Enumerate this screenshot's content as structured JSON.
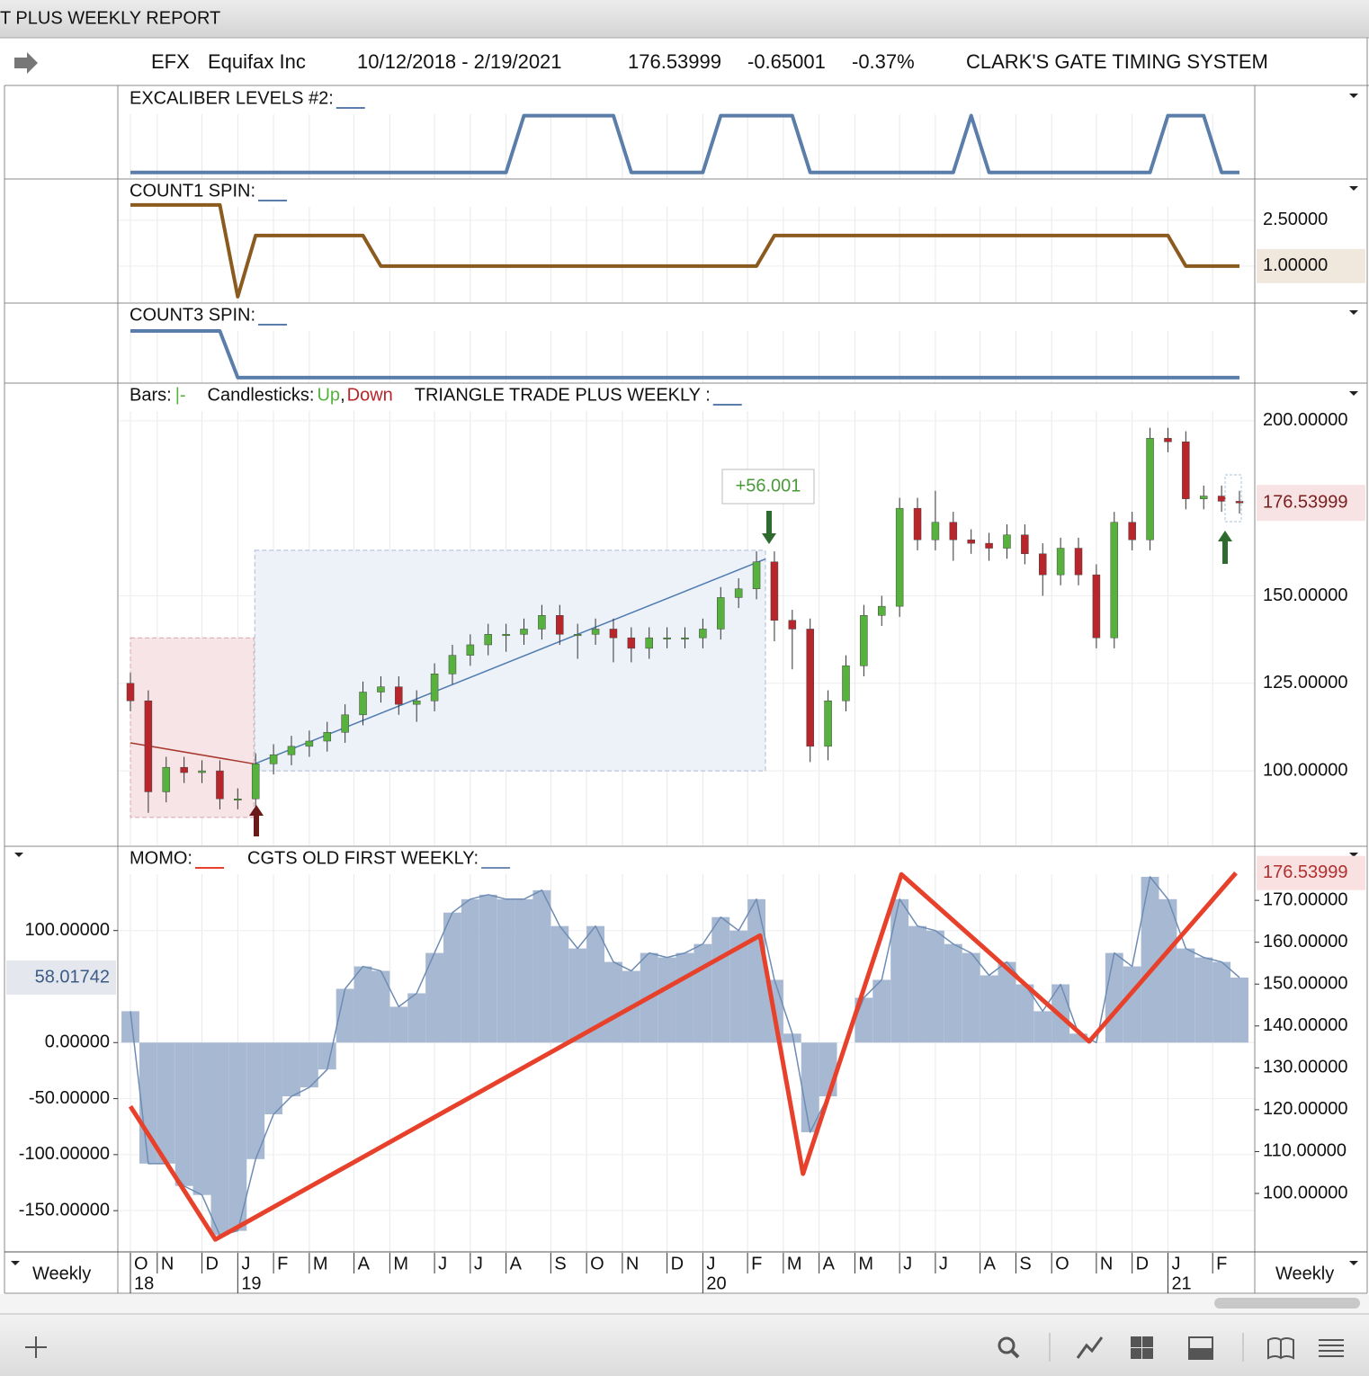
{
  "window": {
    "title": "T PLUS WEEKLY REPORT"
  },
  "info": {
    "symbol": "EFX",
    "name": "Equifax Inc",
    "range": "10/12/2018 - 2/19/2021",
    "last": "176.53999",
    "change": "-0.65001",
    "change_pct": "-0.37%",
    "system": "CLARK'S GATE TIMING SYSTEM"
  },
  "chart_data": [
    {
      "type": "line",
      "title": "EXCALIBER LEVELS #2:",
      "color": "#5a7ea9",
      "swatch_color": "#5a7ea9",
      "ylim": [
        -0.1,
        1.5
      ],
      "x": [
        0,
        2,
        4,
        6,
        8,
        10,
        12,
        14,
        16,
        18,
        20,
        22,
        24,
        26,
        28,
        30,
        32,
        34,
        36,
        38,
        40,
        42,
        44,
        46,
        48,
        50,
        52,
        54,
        56,
        58,
        60,
        62,
        64,
        66,
        68,
        70,
        72,
        74,
        76,
        78,
        80,
        82,
        84,
        86,
        88,
        90,
        92,
        94,
        96,
        98,
        100,
        102,
        104,
        106,
        108,
        110,
        112,
        114,
        116,
        118,
        120,
        122,
        124
      ],
      "values": [
        0,
        0,
        0,
        0,
        0,
        0,
        0,
        0,
        0,
        0,
        0,
        0,
        0,
        0,
        0,
        0,
        0,
        0,
        0,
        0,
        0,
        0,
        1,
        1,
        1,
        1,
        1,
        1,
        0,
        0,
        0,
        0,
        0,
        1,
        1,
        1,
        1,
        1,
        0,
        0,
        0,
        0,
        0,
        0,
        0,
        0,
        0,
        1,
        0,
        0,
        0,
        0,
        0,
        0,
        0,
        0,
        0,
        0,
        1,
        1,
        1,
        0,
        0
      ]
    },
    {
      "type": "line",
      "title": "COUNT1 SPIN:",
      "color": "#8b5a1f",
      "swatch_color": "#5a7ea9",
      "ylim": [
        -0.18,
        3.82
      ],
      "yticks": [
        {
          "value": 2.5,
          "label": "2.50000"
        },
        {
          "value": 1,
          "label": "1.00000"
        }
      ],
      "x": [
        0,
        2,
        4,
        6,
        8,
        10,
        12,
        14,
        16,
        18,
        20,
        22,
        24,
        26,
        28,
        30,
        32,
        34,
        36,
        38,
        40,
        42,
        44,
        46,
        48,
        50,
        52,
        54,
        56,
        58,
        60,
        62,
        64,
        66,
        68,
        70,
        72,
        74,
        76,
        78,
        80,
        82,
        84,
        86,
        88,
        90,
        92,
        94,
        96,
        98,
        100,
        102,
        104,
        106,
        108,
        110,
        112,
        114,
        116,
        118,
        120,
        122,
        124
      ],
      "values": [
        3,
        3,
        3,
        3,
        3,
        3,
        0,
        2,
        2,
        2,
        2,
        2,
        2,
        2,
        1,
        1,
        1,
        1,
        1,
        1,
        1,
        1,
        1,
        1,
        1,
        1,
        1,
        1,
        1,
        1,
        1,
        1,
        1,
        1,
        1,
        1,
        2,
        2,
        2,
        2,
        2,
        2,
        2,
        2,
        2,
        2,
        2,
        2,
        2,
        2,
        2,
        2,
        2,
        2,
        2,
        2,
        2,
        2,
        2,
        1,
        1,
        1,
        1
      ]
    },
    {
      "type": "line",
      "title": "COUNT3 SPIN:",
      "color": "#5a7ea9",
      "swatch_color": "#5a7ea9",
      "ylim": [
        -0.1,
        1.58
      ],
      "x": [
        0,
        2,
        4,
        6,
        8,
        10,
        12,
        14,
        16,
        18,
        20,
        22,
        24,
        26,
        28,
        30,
        32,
        34,
        36,
        38,
        40,
        42,
        44,
        46,
        48,
        50,
        52,
        54,
        56,
        58,
        60,
        62,
        64,
        66,
        68,
        70,
        72,
        74,
        76,
        78,
        80,
        82,
        84,
        86,
        88,
        90,
        92,
        94,
        96,
        98,
        100,
        102,
        104,
        106,
        108,
        110,
        112,
        114,
        116,
        118,
        120,
        122,
        124
      ],
      "values": [
        1,
        1,
        1,
        1,
        1,
        1,
        0,
        0,
        0,
        0,
        0,
        0,
        0,
        0,
        0,
        0,
        0,
        0,
        0,
        0,
        0,
        0,
        0,
        0,
        0,
        0,
        0,
        0,
        0,
        0,
        0,
        0,
        0,
        0,
        0,
        0,
        0,
        0,
        0,
        0,
        0,
        0,
        0,
        0,
        0,
        0,
        0,
        0,
        0,
        0,
        0,
        0,
        0,
        0,
        0,
        0,
        0,
        0,
        0,
        0,
        0,
        0,
        0
      ]
    },
    {
      "type": "candlestick",
      "title": "TRIANGLE TRADE PLUS WEEKLY :",
      "swatch_color": "#5a7ea9",
      "legend": {
        "bars": "Bars:",
        "bar_symbol": "|-",
        "candles": "Candlesticks:",
        "up": "Up",
        "sep": ",",
        "down": "Down"
      },
      "up_color": "#56b23c",
      "down_color": "#b8252a",
      "annotation": "+56.001",
      "ylim": [
        78.7,
        210.5
      ],
      "yticks": [
        {
          "value": 100,
          "label": "100.00000"
        },
        {
          "value": 125,
          "label": "125.00000"
        },
        {
          "value": 150,
          "label": "150.00000"
        },
        {
          "value": 200,
          "label": "200.00000"
        }
      ],
      "x": [
        0,
        2,
        4,
        6,
        8,
        10,
        12,
        14,
        16,
        18,
        20,
        22,
        24,
        26,
        28,
        30,
        32,
        34,
        36,
        38,
        40,
        42,
        44,
        46,
        48,
        50,
        52,
        54,
        56,
        58,
        60,
        62,
        64,
        66,
        68,
        70,
        72,
        74,
        76,
        78,
        80,
        82,
        84,
        86,
        88,
        90,
        92,
        94,
        96,
        98,
        100,
        102,
        104,
        106,
        108,
        110,
        112,
        114,
        116,
        118,
        120,
        122,
        124
      ],
      "open": [
        125,
        120,
        94,
        101,
        99.5,
        100,
        92,
        92,
        102,
        104.6,
        107,
        108.5,
        111,
        116,
        122.5,
        124,
        119,
        120,
        127.7,
        133,
        136,
        139,
        139,
        140.5,
        144.4,
        139,
        139,
        140.5,
        138,
        135,
        138,
        138,
        138,
        140.5,
        149.5,
        152,
        159.7,
        143,
        140.5,
        107,
        120,
        130,
        144.4,
        147,
        175,
        166,
        171,
        166,
        165,
        163.6,
        167.4,
        162,
        156,
        163.6,
        156,
        138,
        171,
        166,
        195,
        194,
        177.7,
        178.5,
        177
      ],
      "high": [
        128,
        123,
        104,
        104,
        103,
        103,
        95,
        105,
        107.6,
        110,
        111.5,
        114,
        119,
        125.5,
        127,
        127,
        123,
        130.7,
        136,
        139,
        142,
        142,
        143.5,
        147.4,
        147.4,
        142,
        143.5,
        143.5,
        141,
        141,
        141,
        141,
        143.5,
        152.5,
        155,
        162.7,
        162.7,
        146,
        143.5,
        123,
        133,
        147.4,
        150,
        178,
        178,
        180,
        174,
        169,
        168,
        170.4,
        170.4,
        165,
        166.6,
        166.6,
        159,
        174,
        174,
        198,
        198,
        197,
        181.5,
        181.5,
        180
      ],
      "low": [
        117,
        88,
        91,
        96.5,
        96.5,
        89,
        89,
        89,
        99,
        101.6,
        104,
        105.5,
        108,
        113,
        119.5,
        116,
        114,
        117,
        124.7,
        130,
        133,
        134,
        136,
        137.5,
        136,
        132,
        136,
        131,
        131,
        132,
        135,
        135,
        135,
        137.5,
        146.5,
        149,
        137,
        129,
        102.5,
        103,
        117,
        127,
        141.4,
        144,
        163,
        163,
        160,
        162,
        160,
        160.6,
        159,
        150,
        153,
        153,
        135,
        135,
        163,
        163,
        191,
        174.7,
        174.7,
        174,
        173.5
      ],
      "close": [
        120,
        94,
        101,
        99.5,
        100,
        92,
        92,
        102,
        104.6,
        107,
        108.5,
        111,
        116,
        122.5,
        124,
        119,
        120,
        127.7,
        133,
        136,
        139,
        139,
        140.5,
        144.4,
        139,
        139,
        140.5,
        138,
        135,
        138,
        138,
        138,
        140.5,
        149.5,
        152,
        159.7,
        143,
        140.5,
        107,
        120,
        130,
        144.4,
        147,
        175,
        166,
        171,
        166,
        165,
        163.6,
        167.4,
        162,
        156,
        163.6,
        156,
        138,
        171,
        166,
        195,
        194,
        177.7,
        178.5,
        177,
        176.53999
      ],
      "zones": [
        {
          "x": [
            0,
            13.8
          ],
          "y": [
            86.7,
            138
          ],
          "color": "#f6e4e7",
          "edge": "#d9a3ad"
        },
        {
          "x": [
            13.9,
            71
          ],
          "y": [
            100,
            163
          ],
          "color": "#edf1f8",
          "edge": "#aebbd6"
        }
      ],
      "trend_lines": [
        {
          "x": [
            0,
            13.8
          ],
          "y": [
            108,
            102
          ],
          "color": "#a8372c"
        },
        {
          "x": [
            13.9,
            71
          ],
          "y": [
            102,
            160.5
          ],
          "color": "#4f7bb0"
        }
      ]
    },
    {
      "type": "bar_line",
      "xlim": [
        0,
        124
      ],
      "xticks": [
        {
          "value": 0,
          "label": "O"
        },
        {
          "value": 3,
          "label": "N"
        },
        {
          "value": 8,
          "label": "D"
        },
        {
          "value": 12,
          "label": "J"
        },
        {
          "value": 16,
          "label": "F"
        },
        {
          "value": 20,
          "label": "M"
        },
        {
          "value": 25,
          "label": "A"
        },
        {
          "value": 29,
          "label": "M"
        },
        {
          "value": 34,
          "label": "J"
        },
        {
          "value": 38,
          "label": "J"
        },
        {
          "value": 42,
          "label": "A"
        },
        {
          "value": 47,
          "label": "S"
        },
        {
          "value": 51,
          "label": "O"
        },
        {
          "value": 55,
          "label": "N"
        },
        {
          "value": 60,
          "label": "D"
        },
        {
          "value": 64,
          "label": "J"
        },
        {
          "value": 69,
          "label": "F"
        },
        {
          "value": 73,
          "label": "M"
        },
        {
          "value": 77,
          "label": "A"
        },
        {
          "value": 81,
          "label": "M"
        },
        {
          "value": 86,
          "label": "J"
        },
        {
          "value": 90,
          "label": "J"
        },
        {
          "value": 95,
          "label": "A"
        },
        {
          "value": 99,
          "label": "S"
        },
        {
          "value": 103,
          "label": "O"
        },
        {
          "value": 108,
          "label": "N"
        },
        {
          "value": 112,
          "label": "D"
        },
        {
          "value": 116,
          "label": "J"
        },
        {
          "value": 121,
          "label": "F"
        }
      ],
      "year_ticks": [
        {
          "value": 0,
          "label": "18"
        },
        {
          "value": 12,
          "label": "19"
        },
        {
          "value": 64,
          "label": "20"
        },
        {
          "value": 116,
          "label": "21"
        }
      ],
      "ylim": [
        -186.8,
        174.4
      ],
      "yticks": [
        {
          "value": 100,
          "label": "100.00000"
        },
        {
          "value": 0,
          "label": "0.00000"
        },
        {
          "value": -50,
          "label": "-50.00000"
        },
        {
          "value": -100,
          "label": "-100.00000"
        },
        {
          "value": -150,
          "label": "-150.00000"
        }
      ],
      "y2lim": [
        86.04,
        182.7
      ],
      "y2ticks": [
        {
          "value": 170,
          "label": "170.00000"
        },
        {
          "value": 160,
          "label": "160.00000"
        },
        {
          "value": 150,
          "label": "150.00000"
        },
        {
          "value": 140,
          "label": "140.00000"
        },
        {
          "value": 130,
          "label": "130.00000"
        },
        {
          "value": 120,
          "label": "120.00000"
        },
        {
          "value": 110,
          "label": "110.00000"
        },
        {
          "value": 100,
          "label": "100.00000"
        }
      ],
      "series": [
        {
          "name": "MOMO:",
          "color": "#e8412b",
          "axis": "y2",
          "x": [
            0,
            9.5,
            70.4,
            75.2,
            86.2,
            107.2,
            123.6
          ],
          "values": [
            120.8,
            89,
            161.6,
            104.7,
            176.2,
            136.3,
            176.53999
          ]
        },
        {
          "name": "CGTS OLD FIRST WEEKLY:",
          "color": "#6f8cb4",
          "fill": "#a7b9d2",
          "x": [
            0,
            2,
            4,
            6,
            8,
            10,
            12,
            14,
            16,
            18,
            20,
            22,
            24,
            26,
            28,
            30,
            32,
            34,
            36,
            38,
            40,
            42,
            44,
            46,
            48,
            50,
            52,
            54,
            56,
            58,
            60,
            62,
            64,
            66,
            68,
            70,
            72,
            74,
            76,
            78,
            80,
            82,
            84,
            86,
            88,
            90,
            92,
            94,
            96,
            98,
            100,
            102,
            104,
            106,
            108,
            110,
            112,
            114,
            116,
            118,
            120,
            122,
            124
          ],
          "values": [
            28,
            -108,
            -108,
            -128,
            -136,
            -172,
            -168,
            -104,
            -64,
            -48,
            -40,
            -24,
            48,
            68,
            64,
            32,
            44,
            80,
            116,
            128,
            132,
            128,
            128,
            136,
            104,
            84,
            104,
            72,
            64,
            80,
            76,
            80,
            88,
            112,
            100,
            128,
            56,
            8,
            -80,
            -48,
            0,
            40,
            56,
            128,
            104,
            100,
            88,
            80,
            60,
            72,
            52,
            28,
            52,
            8,
            0,
            80,
            68,
            148,
            128,
            84,
            76,
            72,
            58.01742
          ]
        }
      ]
    }
  ],
  "axis_bar": {
    "left": "Weekly",
    "right": "Weekly"
  }
}
